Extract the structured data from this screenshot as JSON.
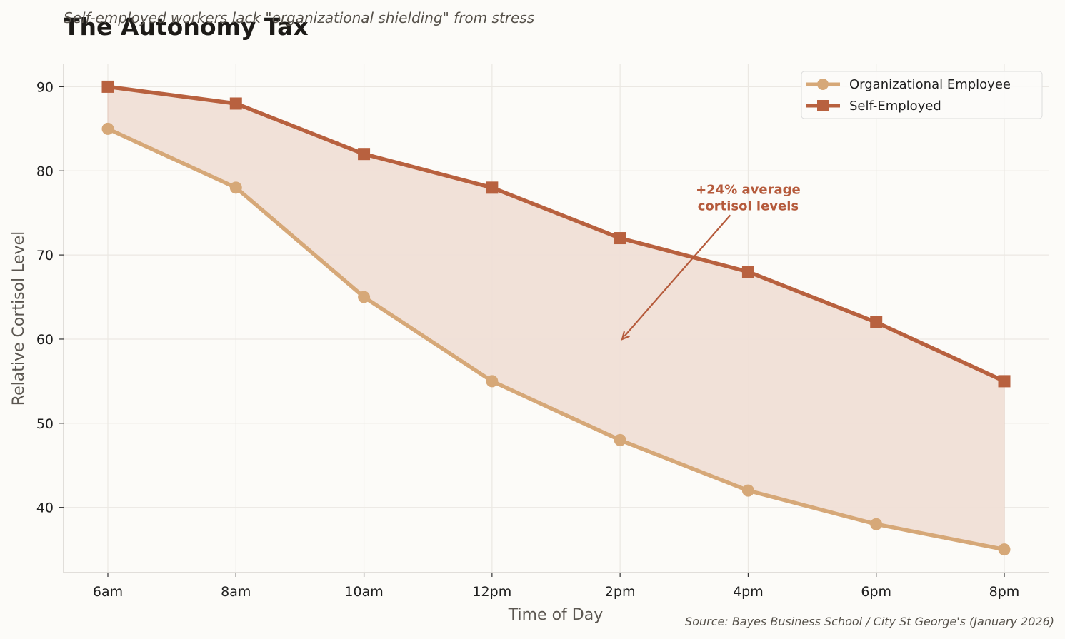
{
  "chart_data": {
    "type": "line",
    "title": "The Autonomy Tax",
    "subtitle": "Self-employed workers lack \"organizational shielding\" from stress",
    "xlabel": "Time of Day",
    "ylabel": "Relative Cortisol Level",
    "categories": [
      "6am",
      "8am",
      "10am",
      "12pm",
      "2pm",
      "4pm",
      "6pm",
      "8pm"
    ],
    "series": [
      {
        "name": "Organizational Employee",
        "values": [
          85,
          78,
          65,
          55,
          48,
          42,
          38,
          35
        ],
        "color": "#d6a878",
        "marker": "circle"
      },
      {
        "name": "Self-Employed",
        "values": [
          90,
          88,
          82,
          78,
          72,
          68,
          62,
          55
        ],
        "color": "#b8613f",
        "marker": "square"
      }
    ],
    "fill_between_color": "#f0dfd6",
    "ylim": [
      32.25,
      92.75
    ],
    "yticks": [
      40,
      50,
      60,
      70,
      80,
      90
    ],
    "grid": true,
    "legend_position": "top-right",
    "annotation": {
      "lines": [
        "+24% average",
        "cortisol levels"
      ],
      "target_category": "2pm",
      "target_value": 60,
      "text_category_offset": 1,
      "text_value": 76,
      "color": "#b55a3b"
    },
    "source": "Source: Bayes Business School / City St George's (January 2026)"
  }
}
